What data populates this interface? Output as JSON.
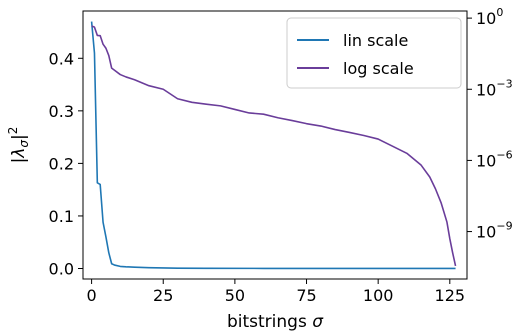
{
  "chart_data": {
    "type": "line",
    "xlabel": "bitstrings σ",
    "ylabel": "|λσ|²",
    "xlim": [
      -3,
      131
    ],
    "ylim_left": [
      -0.02,
      0.49
    ],
    "ylim_right_log10": [
      -11,
      0.3
    ],
    "x_ticks": [
      0,
      25,
      50,
      75,
      100,
      125
    ],
    "y_ticks_left": [
      0.0,
      0.1,
      0.2,
      0.3,
      0.4
    ],
    "y_ticks_right_exp": [
      -9,
      -6,
      -3,
      0
    ],
    "legend_position": "top-right",
    "series": [
      {
        "name": "lin scale",
        "axis": "left",
        "color": "#1f77b4",
        "x": [
          0,
          1,
          2,
          3,
          4,
          5,
          6,
          7,
          8,
          10,
          12,
          15,
          20,
          25,
          30,
          40,
          60,
          80,
          100,
          120,
          127
        ],
        "values": [
          0.47,
          0.41,
          0.163,
          0.16,
          0.088,
          0.06,
          0.03,
          0.009,
          0.0065,
          0.004,
          0.0032,
          0.0025,
          0.0015,
          0.001,
          0.0006,
          0.0003,
          0.0002,
          0.0001,
          0.0001,
          0.0001,
          0.0001
        ]
      },
      {
        "name": "log scale",
        "axis": "right",
        "color": "#6a3d9a",
        "x": [
          0,
          1,
          2,
          3,
          4,
          5,
          6,
          7,
          8,
          10,
          12,
          15,
          20,
          25,
          30,
          35,
          40,
          45,
          50,
          55,
          60,
          65,
          70,
          75,
          80,
          85,
          90,
          95,
          100,
          105,
          110,
          115,
          118,
          120,
          122,
          124,
          125,
          126,
          127
        ],
        "values_log10": [
          -0.33,
          -0.38,
          -0.73,
          -0.74,
          -1.1,
          -1.27,
          -1.58,
          -2.11,
          -2.2,
          -2.38,
          -2.48,
          -2.6,
          -2.85,
          -3.0,
          -3.4,
          -3.55,
          -3.63,
          -3.7,
          -3.85,
          -4.0,
          -4.05,
          -4.2,
          -4.32,
          -4.45,
          -4.55,
          -4.7,
          -4.82,
          -4.95,
          -5.1,
          -5.4,
          -5.7,
          -6.2,
          -6.7,
          -7.2,
          -7.8,
          -8.6,
          -9.3,
          -9.9,
          -10.45
        ]
      }
    ]
  }
}
